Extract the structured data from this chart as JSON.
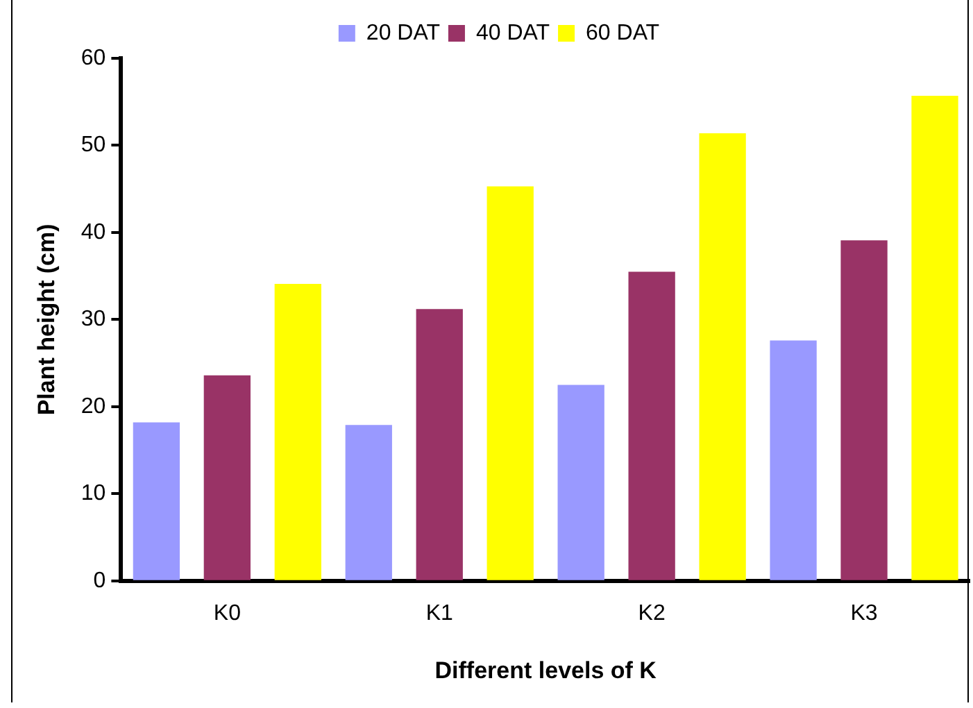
{
  "chart_data": {
    "type": "bar",
    "xlabel": "Different levels of K",
    "ylabel": "Plant height (cm)",
    "categories": [
      "K0",
      "K1",
      "K2",
      "K3"
    ],
    "series": [
      {
        "name": "20 DAT",
        "color": "#9999ff",
        "values": [
          18.2,
          17.9,
          22.5,
          27.6
        ]
      },
      {
        "name": "40 DAT",
        "color": "#993366",
        "values": [
          23.6,
          31.2,
          35.5,
          39.1
        ]
      },
      {
        "name": "60 DAT",
        "color": "#ffff00",
        "values": [
          34.1,
          45.3,
          51.4,
          55.7
        ]
      }
    ],
    "ylim": [
      0,
      60
    ],
    "yticks": [
      0,
      10,
      20,
      30,
      40,
      50,
      60
    ],
    "grid": false,
    "legend": "top"
  }
}
